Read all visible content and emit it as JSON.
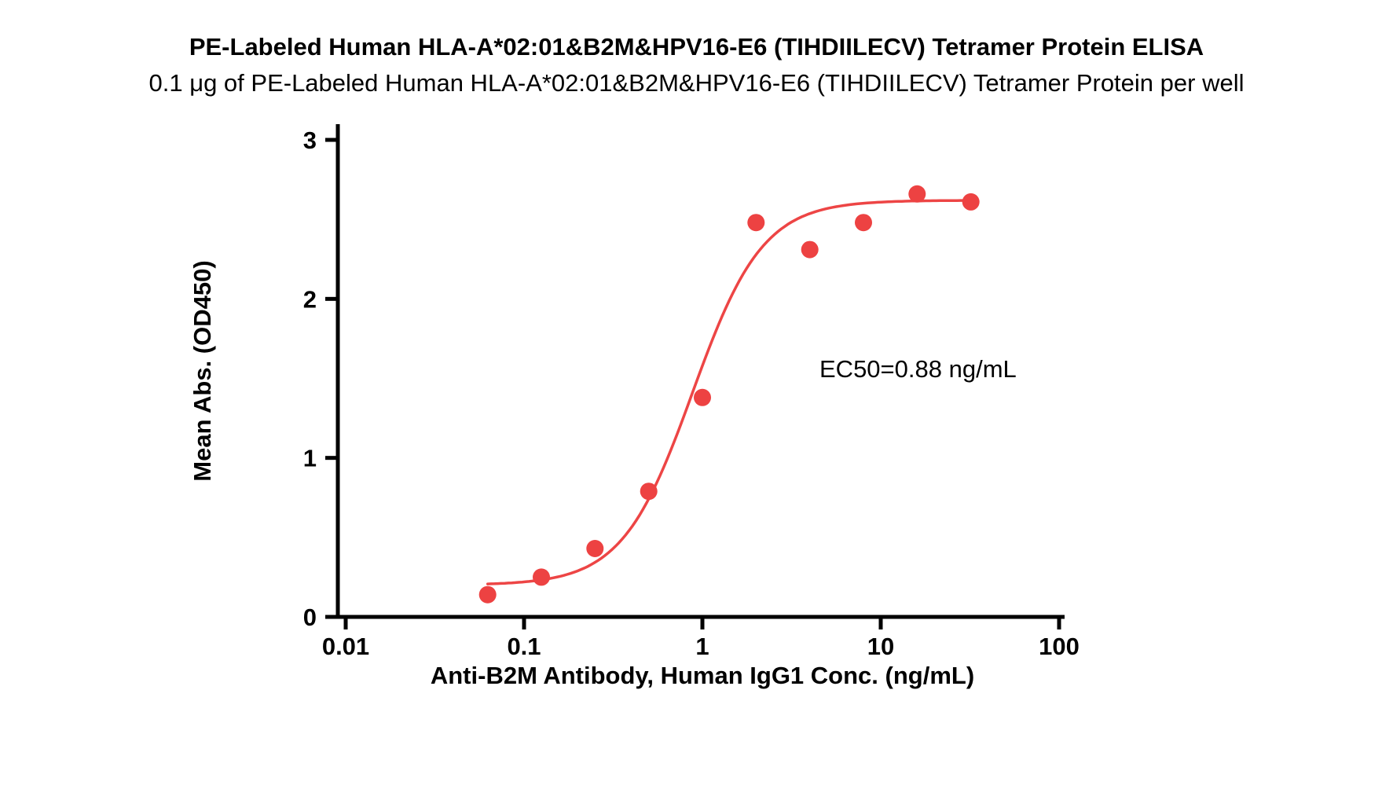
{
  "chart_data": {
    "type": "scatter",
    "title": "PE-Labeled Human HLA-A*02:01&B2M&HPV16-E6 (TIHDIILECV) Tetramer Protein ELISA",
    "subtitle": "0.1 μg of PE-Labeled Human HLA-A*02:01&B2M&HPV16-E6 (TIHDIILECV) Tetramer Protein per well",
    "xlabel": "Anti-B2M Antibody, Human IgG1 Conc. (ng/mL)",
    "ylabel": "Mean Abs. (OD450)",
    "annotation": "EC50=0.88 ng/mL",
    "x_scale": "log",
    "xlim": [
      0.01,
      100
    ],
    "ylim": [
      0,
      3
    ],
    "x_ticks": [
      0.01,
      0.1,
      1,
      10,
      100
    ],
    "x_tick_labels": [
      "0.01",
      "0.1",
      "1",
      "10",
      "100"
    ],
    "y_ticks": [
      0,
      1,
      2,
      3
    ],
    "x": [
      0.0625,
      0.125,
      0.25,
      0.5,
      1,
      2,
      4,
      8,
      16,
      32
    ],
    "y": [
      0.14,
      0.25,
      0.43,
      0.79,
      1.38,
      2.48,
      2.31,
      2.48,
      2.66,
      2.61
    ],
    "fit": {
      "model": "4PL",
      "bottom": 0.2,
      "top": 2.62,
      "ec50": 0.88,
      "hill": 2.2
    },
    "point_color": "#ed4242",
    "curve_color": "#ed4545",
    "axis_color": "#000000",
    "grid": false,
    "legend": "none"
  }
}
